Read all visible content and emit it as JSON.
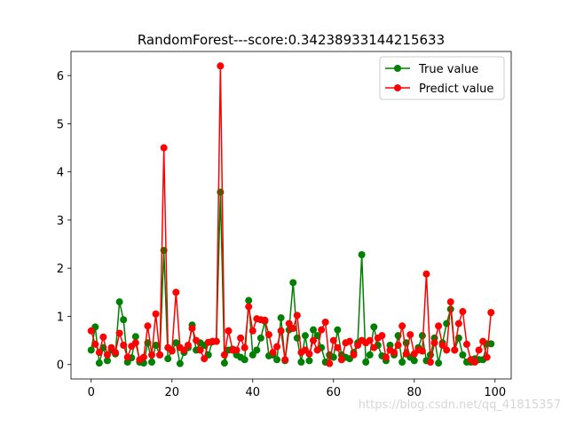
{
  "chart_data": {
    "type": "line",
    "title": "RandomForest---score:0.34238933144215633",
    "xlabel": "",
    "ylabel": "",
    "xlim": [
      -5,
      104
    ],
    "ylim": [
      -0.3,
      6.5
    ],
    "xticks": [
      0,
      20,
      40,
      60,
      80,
      100
    ],
    "yticks": [
      0,
      1,
      2,
      3,
      4,
      5,
      6
    ],
    "grid": false,
    "legend_position": "top-right",
    "x": [
      0,
      1,
      2,
      3,
      4,
      5,
      6,
      7,
      8,
      9,
      10,
      11,
      12,
      13,
      14,
      15,
      16,
      17,
      18,
      19,
      20,
      21,
      22,
      23,
      24,
      25,
      26,
      27,
      28,
      29,
      30,
      31,
      32,
      33,
      34,
      35,
      36,
      37,
      38,
      39,
      40,
      41,
      42,
      43,
      44,
      45,
      46,
      47,
      48,
      49,
      50,
      51,
      52,
      53,
      54,
      55,
      56,
      57,
      58,
      59,
      60,
      61,
      62,
      63,
      64,
      65,
      66,
      67,
      68,
      69,
      70,
      71,
      72,
      73,
      74,
      75,
      76,
      77,
      78,
      79,
      80,
      81,
      82,
      83,
      84,
      85,
      86,
      87,
      88,
      89,
      90,
      91,
      92,
      93,
      94,
      95,
      96,
      97,
      98,
      99
    ],
    "series": [
      {
        "name": "True value",
        "color": "#008000",
        "values": [
          0.3,
          0.78,
          0.03,
          0.35,
          0.08,
          0.3,
          0.22,
          1.3,
          0.93,
          0.05,
          0.14,
          0.58,
          0.05,
          0.03,
          0.45,
          0.05,
          0.4,
          0.2,
          2.37,
          0.12,
          0.3,
          0.45,
          0.02,
          0.25,
          0.35,
          0.82,
          0.3,
          0.45,
          0.4,
          0.2,
          0.47,
          0.48,
          3.58,
          0.03,
          0.3,
          0.32,
          0.2,
          0.15,
          0.1,
          1.33,
          0.2,
          0.3,
          0.55,
          0.9,
          0.18,
          0.2,
          0.1,
          0.97,
          0.08,
          0.72,
          1.7,
          0.55,
          0.05,
          0.6,
          0.08,
          0.72,
          0.6,
          0.35,
          0.05,
          0.2,
          0.15,
          0.72,
          0.2,
          0.15,
          0.12,
          0.25,
          0.45,
          2.28,
          0.05,
          0.2,
          0.78,
          0.4,
          0.18,
          0.08,
          0.4,
          0.2,
          0.6,
          0.05,
          0.45,
          0.15,
          0.08,
          0.35,
          0.6,
          0.08,
          0.2,
          0.55,
          0.03,
          0.45,
          0.85,
          1.15,
          0.3,
          0.55,
          0.2,
          0.05,
          0.05,
          0.12,
          0.1,
          0.1,
          0.43,
          0.43
        ]
      },
      {
        "name": "Predict value",
        "color": "#ff0000",
        "values": [
          0.7,
          0.42,
          0.25,
          0.57,
          0.2,
          0.35,
          0.25,
          0.65,
          0.4,
          0.15,
          0.38,
          0.45,
          0.1,
          0.15,
          0.8,
          0.2,
          1.05,
          0.2,
          4.5,
          0.35,
          0.28,
          1.5,
          0.35,
          0.3,
          0.4,
          0.75,
          0.5,
          0.3,
          0.12,
          0.46,
          0.48,
          0.48,
          6.2,
          0.2,
          0.7,
          0.3,
          0.3,
          0.55,
          0.35,
          1.2,
          0.7,
          0.95,
          0.93,
          0.92,
          0.62,
          0.25,
          0.37,
          0.7,
          0.1,
          0.85,
          0.75,
          1.02,
          0.25,
          0.3,
          0.22,
          0.5,
          0.3,
          0.72,
          0.88,
          0.02,
          0.5,
          0.35,
          0.1,
          0.45,
          0.48,
          0.2,
          0.4,
          0.5,
          0.45,
          0.5,
          0.35,
          0.55,
          0.6,
          0.15,
          0.3,
          0.25,
          0.4,
          0.8,
          0.22,
          0.62,
          0.22,
          0.3,
          0.28,
          1.88,
          0.05,
          0.45,
          0.8,
          0.4,
          0.3,
          1.3,
          0.3,
          0.85,
          1.1,
          0.42,
          0.1,
          0.05,
          0.3,
          0.48,
          0.15,
          1.08
        ]
      }
    ]
  },
  "watermark": "https://blog.csdn.net/qq_41815357"
}
